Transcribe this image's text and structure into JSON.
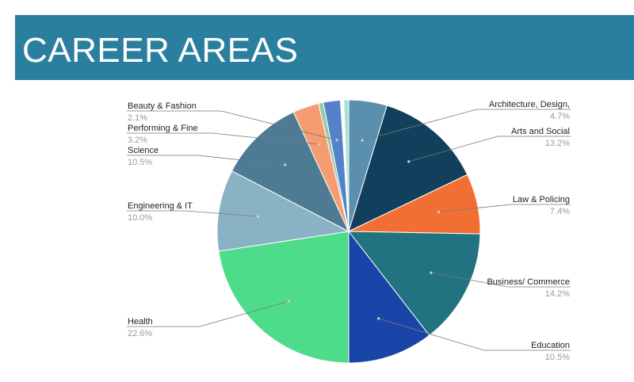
{
  "header": {
    "title": "CAREER AREAS"
  },
  "chart_data": {
    "type": "pie",
    "title": "CAREER AREAS",
    "legend": "none",
    "slices": [
      {
        "label": "Architecture, Design,",
        "value": 4.7,
        "pct_label": "4.7%",
        "color": "#5b8fae"
      },
      {
        "label": "Arts and Social",
        "value": 13.2,
        "pct_label": "13.2%",
        "color": "#123f5c"
      },
      {
        "label": "Law & Policing",
        "value": 7.4,
        "pct_label": "7.4%",
        "color": "#f26f33"
      },
      {
        "label": "Business/ Commerce",
        "value": 14.2,
        "pct_label": "14.2%",
        "color": "#227381"
      },
      {
        "label": "Education",
        "value": 10.5,
        "pct_label": "10.5%",
        "color": "#1a45a8"
      },
      {
        "label": "Health",
        "value": 22.6,
        "pct_label": "22.6%",
        "color": "#4fdc8a"
      },
      {
        "label": "Engineering & IT",
        "value": 10.0,
        "pct_label": "10.0%",
        "color": "#8ab2c5"
      },
      {
        "label": "Science",
        "value": 10.5,
        "pct_label": "10.5%",
        "color": "#4c7b93"
      },
      {
        "label": "Performing & Fine",
        "value": 3.2,
        "pct_label": "3.2%",
        "color": "#f59c70"
      },
      {
        "label": "",
        "value": 0.6,
        "pct_label": "",
        "color": "#9cc7a9"
      },
      {
        "label": "Beauty & Fashion",
        "value": 2.1,
        "pct_label": "2.1%",
        "color": "#5481c9"
      },
      {
        "label": "",
        "value": 0.4,
        "pct_label": "",
        "color": "#ffffff"
      },
      {
        "label": "",
        "value": 0.6,
        "pct_label": "",
        "color": "#a8e0cf"
      }
    ]
  }
}
